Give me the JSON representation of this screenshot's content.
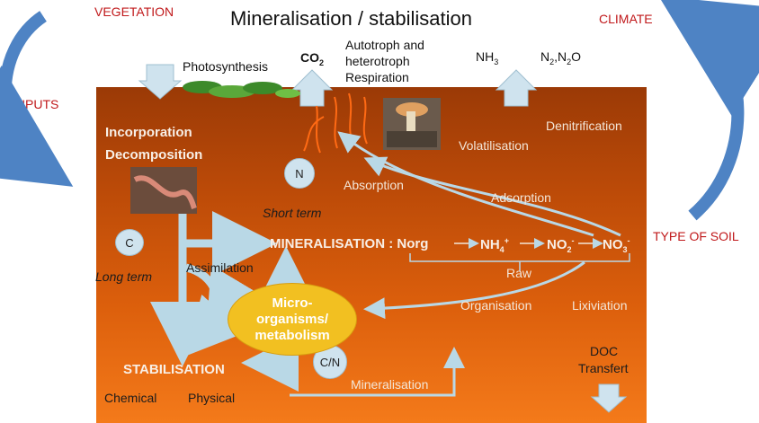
{
  "title": "Mineralisation  / stabilisation",
  "corner_labels": {
    "vegetation": "VEGETATION",
    "climate": "CLIMATE",
    "co2_top_right": "CO",
    "co2_top_right_sub": "2",
    "inputs": "INPUTS",
    "type_of_soil": "TYPE OF SOIL"
  },
  "surface_labels": {
    "photosynthesis": "Photosynthesis",
    "co2": "CO",
    "co2_sub": "2",
    "autotroph": "Autotroph and",
    "heterotroph": "heterotroph",
    "respiration": "Respiration",
    "nh3": "NH",
    "nh3_sub": "3",
    "n2n2o": "N",
    "n2n2o_mid": "2",
    "n2n2o_rest": ",N",
    "n2n2o_sub": "2",
    "n2n2o_end": "O"
  },
  "soil_labels": {
    "incorporation": "Incorporation",
    "decomposition": "Decomposition",
    "denitrification": "Denitrification",
    "volatilisation": "Volatilisation",
    "absorption": "Absorption",
    "adsorption": "Adsorption",
    "short_term": "Short term",
    "long_term": "Long term",
    "assimilation": "Assimilation",
    "raw": "Raw",
    "organisation": "Organisation",
    "lixiviation": "Lixiviation",
    "stabilisation": "STABILISATION",
    "chemical": "Chemical",
    "physical": "Physical",
    "mineralisation_small": "Mineralisation",
    "doc": "DOC",
    "transfert": "Transfert"
  },
  "mineralisation_chain": {
    "label": "MINERALISATION : Norg",
    "nh4": "NH",
    "nh4_sub": "4",
    "nh4_sup": "+",
    "no2": "NO",
    "no2_sub": "2",
    "no2_sup": "-",
    "no3": "NO",
    "no3_sub": "3",
    "no3_sup": "-"
  },
  "circles": {
    "n": "N",
    "c": "C",
    "cn": "C/N"
  },
  "micro": {
    "line1": "Micro-",
    "line2": "organisms/",
    "line3": "metabolism"
  },
  "colors": {
    "soil_top": "#9b3a06",
    "soil_bottom": "#f47a1a",
    "arrow_light_blue": "#b9d8e6",
    "curve_blue": "#4e83c4",
    "red_text": "#c0181a",
    "micro_yellow": "#f2c021"
  }
}
